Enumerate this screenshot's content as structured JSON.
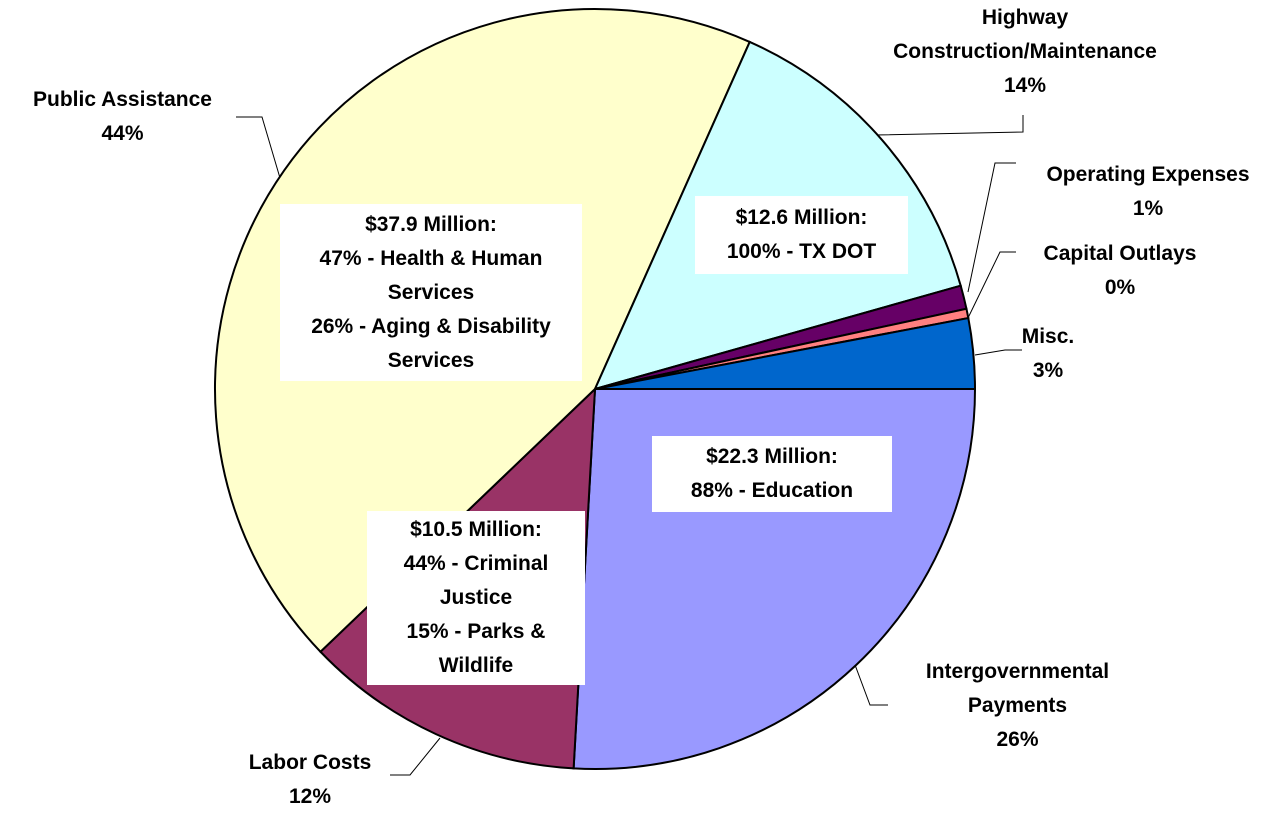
{
  "chart_data": {
    "type": "pie",
    "categories": [
      "Intergovernmental Payments",
      "Labor Costs",
      "Public Assistance",
      "Highway Construction/Maintenance",
      "Operating Expenses",
      "Capital Outlays",
      "Misc."
    ],
    "values": [
      26,
      12,
      44,
      14,
      1,
      0.4,
      3
    ],
    "value_labels": [
      "26%",
      "12%",
      "44%",
      "14%",
      "1%",
      "0%",
      "3%"
    ],
    "colors": [
      "#9999ff",
      "#993366",
      "#ffffcc",
      "#ccffff",
      "#660066",
      "#ff8080",
      "#0066cc"
    ],
    "annotations": [
      {
        "lines": [
          "$22.3 Million:",
          "88% - Education"
        ]
      },
      {
        "lines": [
          "$10.5 Million:",
          "44% - Criminal Justice",
          "15% - Parks & Wildlife"
        ]
      },
      {
        "lines": [
          "$37.9 Million:",
          "47% - Health & Human Services",
          "26% - Aging & Disability Services"
        ]
      },
      {
        "lines": [
          "$12.6 Million:",
          "100% - TX DOT"
        ]
      }
    ]
  }
}
